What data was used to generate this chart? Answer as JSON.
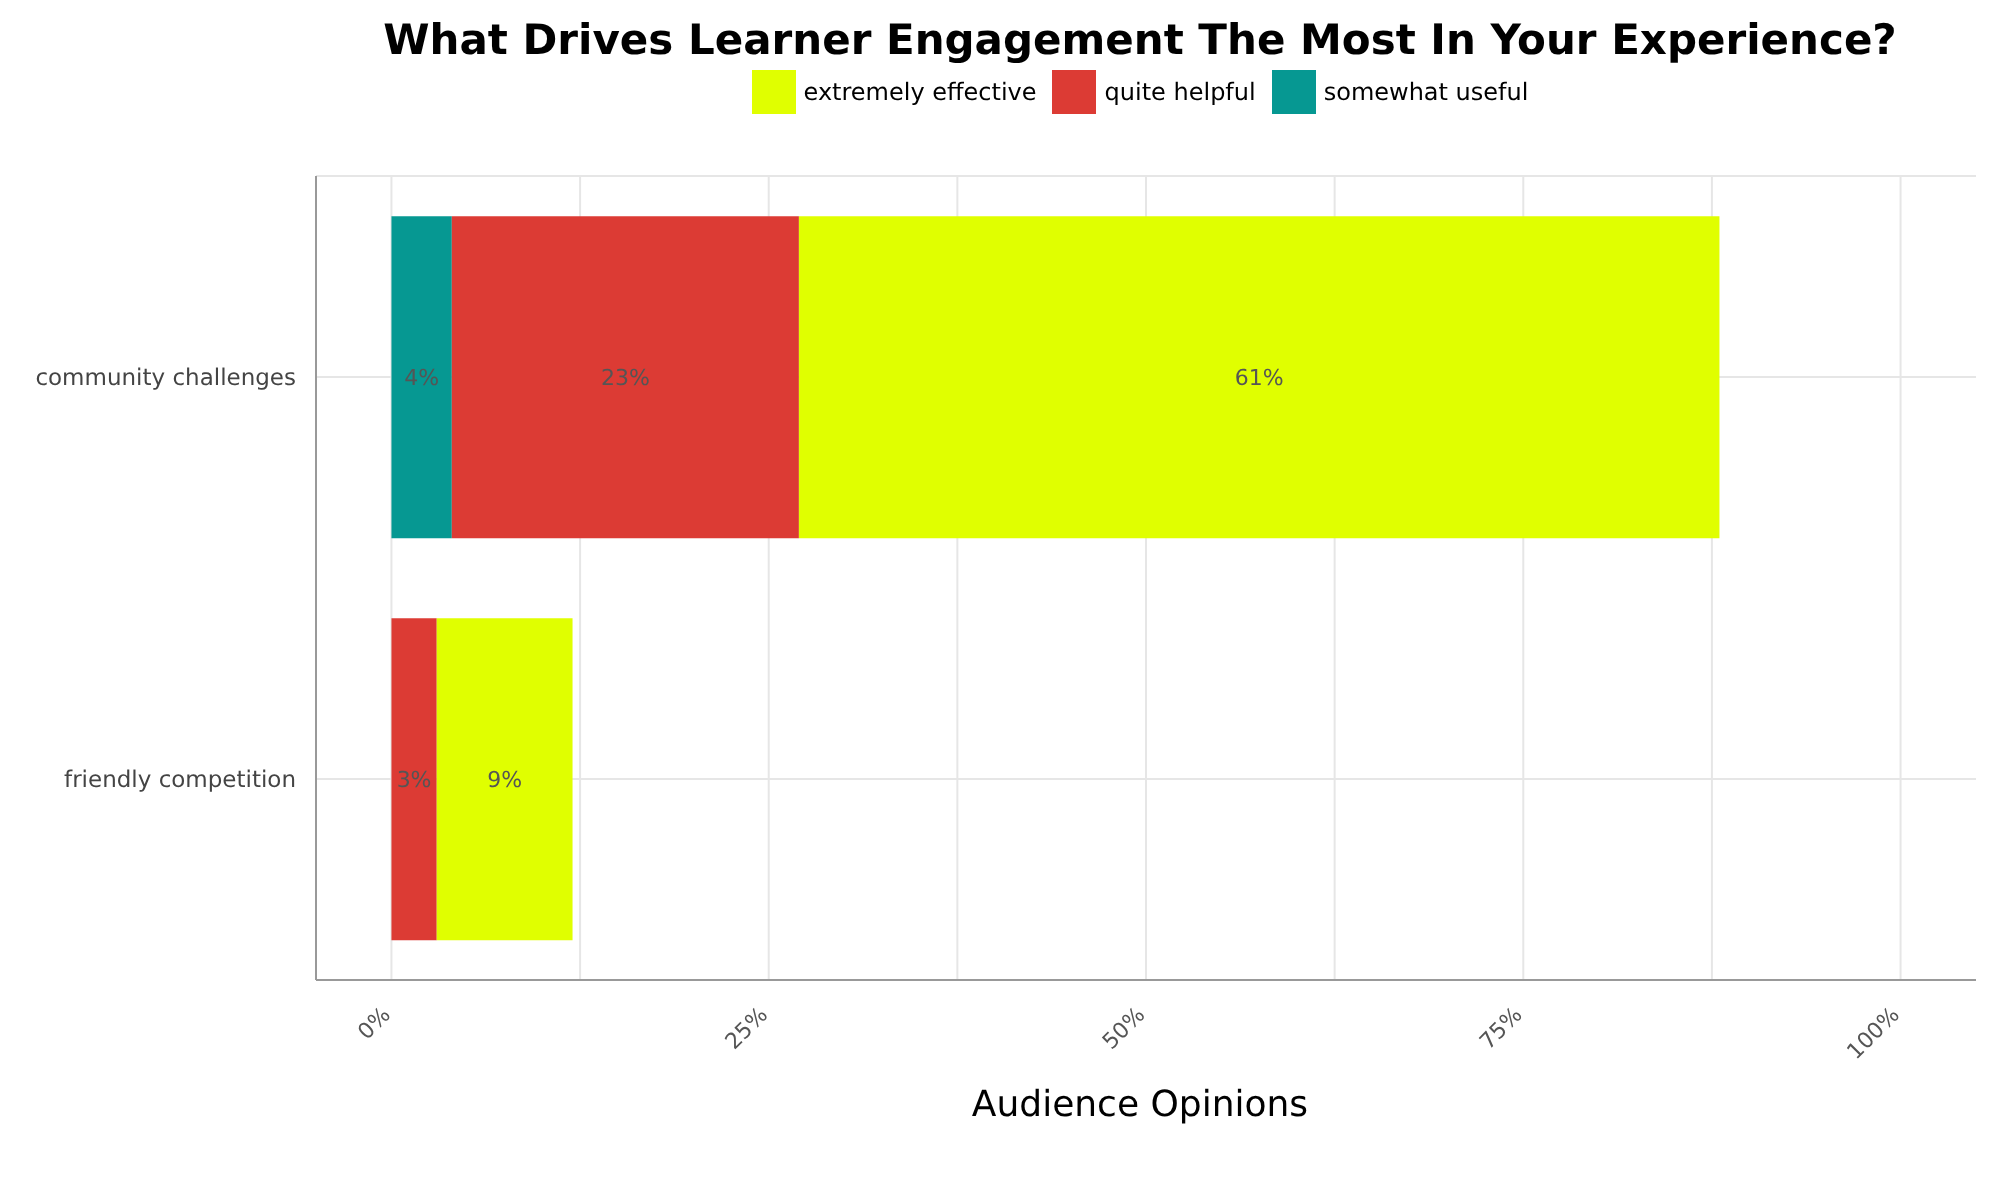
{
  "chart_data": {
    "type": "bar",
    "orientation": "horizontal",
    "stacked": true,
    "title": "What Drives Learner Engagement The Most In Your Experience?",
    "xlabel": "Audience Opinions",
    "categories": [
      "community challenges",
      "friendly competition"
    ],
    "series": [
      {
        "name": "somewhat useful",
        "color": "#069892",
        "values": [
          4,
          null
        ],
        "value_labels": [
          "4%",
          null
        ]
      },
      {
        "name": "quite helpful",
        "color": "#dc3b34",
        "values": [
          23,
          3
        ],
        "value_labels": [
          "23%",
          "3%"
        ]
      },
      {
        "name": "extremely effective",
        "color": "#e0ff00",
        "values": [
          61,
          9
        ],
        "value_labels": [
          "61%",
          "9%"
        ]
      }
    ],
    "xlim": [
      -5,
      105
    ],
    "xticks": [
      {
        "value": 0,
        "label": "0%"
      },
      {
        "value": 12.5,
        "label": null
      },
      {
        "value": 25,
        "label": "25%"
      },
      {
        "value": 37.5,
        "label": null
      },
      {
        "value": 50,
        "label": "50%"
      },
      {
        "value": 62.5,
        "label": null
      },
      {
        "value": 75,
        "label": "75%"
      },
      {
        "value": 87.5,
        "label": null
      },
      {
        "value": 100,
        "label": "100%"
      }
    ],
    "grid": true,
    "legend": "top"
  }
}
